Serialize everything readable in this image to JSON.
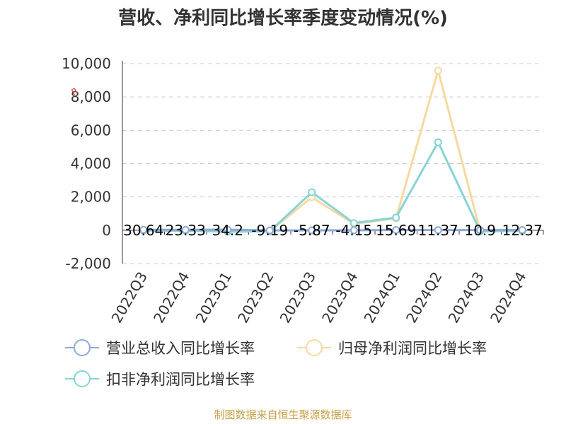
{
  "chart_data": {
    "type": "line",
    "title": "营收、净利同比增长率季度变动情况(%)",
    "categories": [
      "2022Q3",
      "2022Q4",
      "2023Q1",
      "2023Q2",
      "2023Q3",
      "2023Q4",
      "2024Q1",
      "2024Q2",
      "2024Q3",
      "2024Q4"
    ],
    "ylim": [
      -2000,
      10000
    ],
    "yticks": [
      10000,
      8000,
      6000,
      4000,
      2000,
      0,
      -2000
    ],
    "ytick_labels": [
      "10,000",
      "8,000",
      "6,000",
      "4,000",
      "2,000",
      "0",
      "-2,000"
    ],
    "grid": true,
    "legend_position": "bottom",
    "series": [
      {
        "name": "营业总收入同比增长率",
        "color": "#8fa8d8",
        "values": [
          30.64,
          23.33,
          34.2,
          -9.19,
          -5.87,
          -4.15,
          15.69,
          11.37,
          10.9,
          12.37
        ],
        "labels": [
          "30.64",
          "23.33",
          "34.2",
          "-9.19",
          "-5.87",
          "-4.15",
          "15.69",
          "11.37",
          "10.9",
          "12.37"
        ]
      },
      {
        "name": "归母净利润同比增长率",
        "color": "#f7d9a0",
        "values": [
          -20,
          -30,
          -60,
          -60,
          1980,
          380,
          720,
          9580,
          -60,
          -40
        ]
      },
      {
        "name": "扣非净利润同比增长率",
        "color": "#87d3d6",
        "values": [
          -20,
          -30,
          -80,
          -70,
          2280,
          430,
          760,
          5280,
          -70,
          -40
        ]
      }
    ],
    "source": "制图数据来自恒生聚源数据库",
    "watermark": "R"
  }
}
